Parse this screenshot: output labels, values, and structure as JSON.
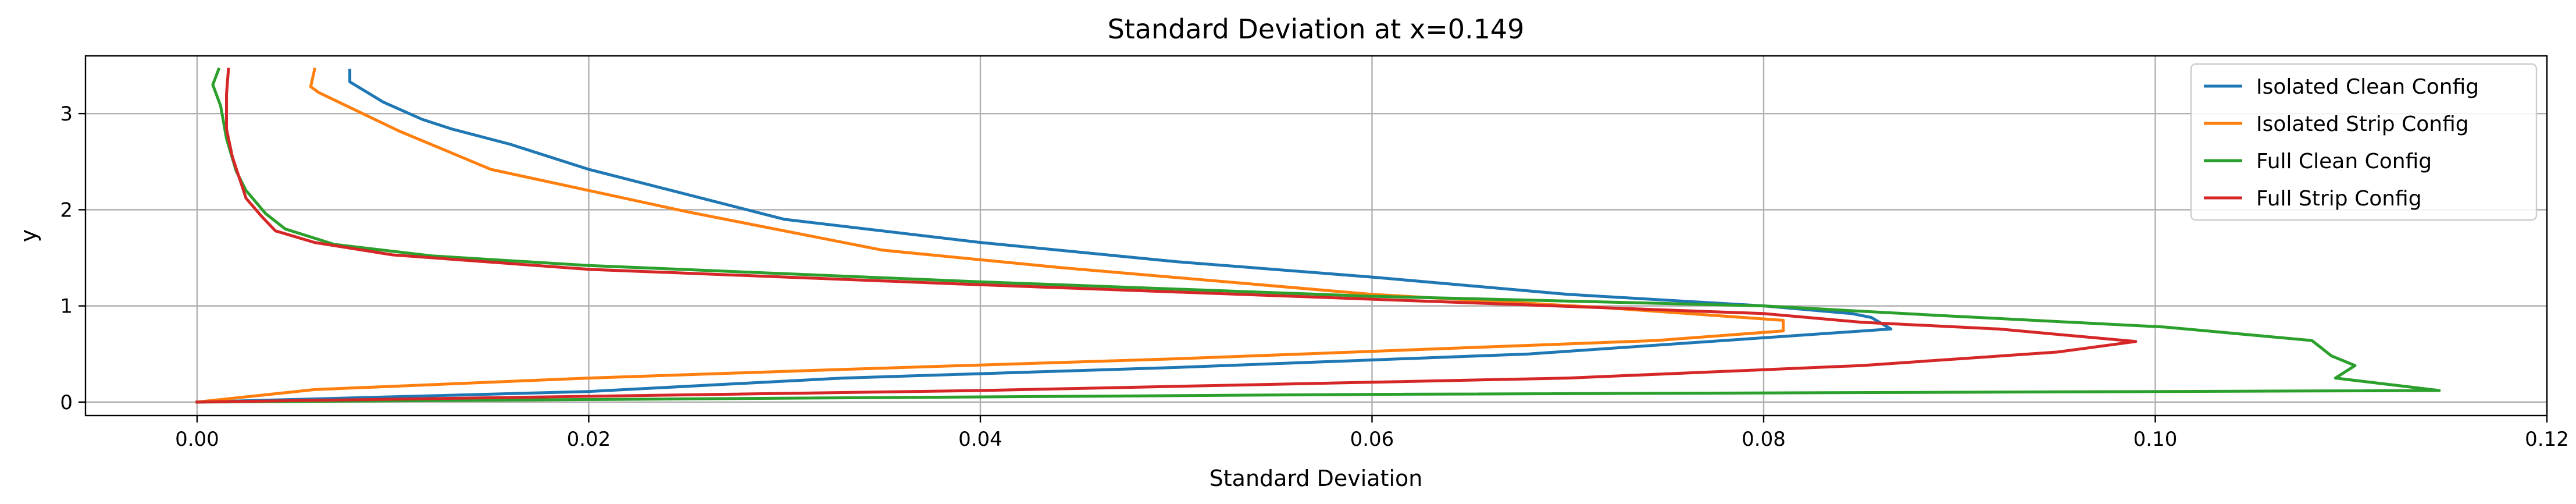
{
  "chart_data": {
    "type": "line",
    "title": "Standard Deviation at x=0.149",
    "xlabel": "Standard Deviation",
    "ylabel": "y",
    "xlim": [
      -0.0057,
      0.12
    ],
    "ylim": [
      -0.14,
      3.6
    ],
    "xticks": [
      0.0,
      0.02,
      0.04,
      0.06,
      0.08,
      0.1,
      0.12
    ],
    "xtick_labels": [
      "0.00",
      "0.02",
      "0.04",
      "0.06",
      "0.08",
      "0.10",
      "0.12"
    ],
    "yticks": [
      0,
      1,
      2,
      3
    ],
    "ytick_labels": [
      "0",
      "1",
      "2",
      "3"
    ],
    "grid": true,
    "legend_position": "top-right",
    "series": [
      {
        "name": "Isolated Clean Config",
        "color": "#1f77b4",
        "points": [
          [
            0.0,
            0.0
          ],
          [
            0.02,
            0.11
          ],
          [
            0.033,
            0.25
          ],
          [
            0.05,
            0.36
          ],
          [
            0.068,
            0.5
          ],
          [
            0.0865,
            0.76
          ],
          [
            0.0855,
            0.88
          ],
          [
            0.0845,
            0.92
          ],
          [
            0.08,
            1.0
          ],
          [
            0.07,
            1.12
          ],
          [
            0.06,
            1.3
          ],
          [
            0.05,
            1.46
          ],
          [
            0.04,
            1.66
          ],
          [
            0.03,
            1.9
          ],
          [
            0.025,
            2.16
          ],
          [
            0.02,
            2.42
          ],
          [
            0.016,
            2.68
          ],
          [
            0.013,
            2.84
          ],
          [
            0.0115,
            2.94
          ],
          [
            0.0095,
            3.12
          ],
          [
            0.0078,
            3.33
          ],
          [
            0.0078,
            3.45
          ]
        ]
      },
      {
        "name": "Isolated Strip Config",
        "color": "#ff7f0e",
        "points": [
          [
            0.0,
            0.0
          ],
          [
            0.006,
            0.13
          ],
          [
            0.02,
            0.25
          ],
          [
            0.033,
            0.34
          ],
          [
            0.05,
            0.45
          ],
          [
            0.0745,
            0.64
          ],
          [
            0.081,
            0.74
          ],
          [
            0.081,
            0.85
          ],
          [
            0.072,
            0.98
          ],
          [
            0.06,
            1.12
          ],
          [
            0.044,
            1.4
          ],
          [
            0.035,
            1.58
          ],
          [
            0.025,
            1.98
          ],
          [
            0.015,
            2.42
          ],
          [
            0.0103,
            2.82
          ],
          [
            0.0062,
            3.22
          ],
          [
            0.0058,
            3.28
          ],
          [
            0.006,
            3.46
          ]
        ]
      },
      {
        "name": "Full Clean Config",
        "color": "#2ca02c",
        "points": [
          [
            0.0,
            0.0
          ],
          [
            0.06,
            0.08
          ],
          [
            0.1145,
            0.12
          ],
          [
            0.1092,
            0.25
          ],
          [
            0.1102,
            0.38
          ],
          [
            0.109,
            0.48
          ],
          [
            0.108,
            0.64
          ],
          [
            0.1005,
            0.78
          ],
          [
            0.089,
            0.9
          ],
          [
            0.08,
            1.0
          ],
          [
            0.06,
            1.1
          ],
          [
            0.04,
            1.25
          ],
          [
            0.02,
            1.42
          ],
          [
            0.012,
            1.52
          ],
          [
            0.007,
            1.64
          ],
          [
            0.0045,
            1.8
          ],
          [
            0.0035,
            1.96
          ],
          [
            0.0025,
            2.2
          ],
          [
            0.002,
            2.4
          ],
          [
            0.0015,
            2.74
          ],
          [
            0.0012,
            3.08
          ],
          [
            0.0008,
            3.3
          ],
          [
            0.0011,
            3.46
          ]
        ]
      },
      {
        "name": "Full Strip Config",
        "color": "#d62728",
        "points": [
          [
            0.0,
            0.0
          ],
          [
            0.04,
            0.12
          ],
          [
            0.07,
            0.25
          ],
          [
            0.085,
            0.38
          ],
          [
            0.095,
            0.52
          ],
          [
            0.099,
            0.63
          ],
          [
            0.092,
            0.76
          ],
          [
            0.085,
            0.83
          ],
          [
            0.08,
            0.92
          ],
          [
            0.06,
            1.07
          ],
          [
            0.04,
            1.22
          ],
          [
            0.02,
            1.38
          ],
          [
            0.01,
            1.53
          ],
          [
            0.006,
            1.66
          ],
          [
            0.004,
            1.78
          ],
          [
            0.0033,
            1.93
          ],
          [
            0.0025,
            2.12
          ],
          [
            0.0018,
            2.55
          ],
          [
            0.0015,
            2.84
          ],
          [
            0.0015,
            3.2
          ],
          [
            0.0016,
            3.46
          ]
        ]
      }
    ]
  }
}
